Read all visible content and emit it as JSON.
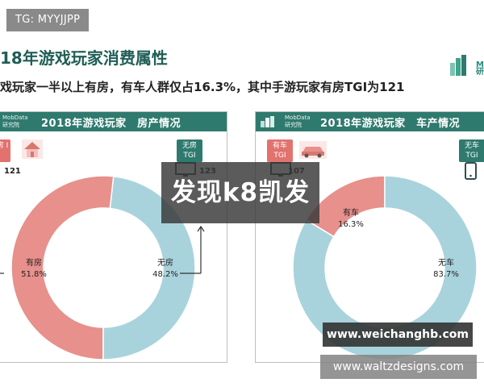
{
  "tag": "TG: MYYJJPP",
  "title": "18年游戏玩家消费属性",
  "logo": {
    "text": "M\n研"
  },
  "subtitle": "戏玩家一半以上有房，有车人群仅占16.3%，其中手游玩家有房TGI为121",
  "colors": {
    "red": "#e7908c",
    "blue": "#a9d3dc",
    "teal": "#2f7a6e"
  },
  "panels": {
    "left": {
      "brand": "MobData\n研究院",
      "heading": "2018年游戏玩家　房产情况",
      "badge_yes": "房\nI",
      "tgi_yes": "121",
      "badge_no": "无房\nTGI",
      "tgi_no": "123",
      "icons": [
        "house-icon",
        "monitor-icon"
      ]
    },
    "right": {
      "brand": "MobData\n研究院",
      "heading": "2018年游戏玩家　车产情况",
      "badge_yes": "有车\nTGI",
      "tgi_yes": "107",
      "badge_no": "无车\nTGI",
      "tgi_no": "",
      "icons": [
        "car-icon",
        "monitor-icon",
        "phone-icon"
      ]
    }
  },
  "chart_data": [
    {
      "type": "pie",
      "title": "2018年游戏玩家　房产情况",
      "slices": [
        {
          "label": "有房",
          "value": 51.8,
          "color": "#e7908c"
        },
        {
          "label": "无房",
          "value": 48.2,
          "color": "#a9d3dc"
        }
      ]
    },
    {
      "type": "pie",
      "title": "2018年游戏玩家　车产情况",
      "slices": [
        {
          "label": "有车",
          "value": 16.3,
          "color": "#e7908c"
        },
        {
          "label": "无车",
          "value": 83.7,
          "color": "#a9d3dc"
        }
      ]
    }
  ],
  "watermarks": {
    "main": "发现k8凯发",
    "url1": "www.weichanghb.com",
    "url2": "www.waltzdesigns.com"
  }
}
